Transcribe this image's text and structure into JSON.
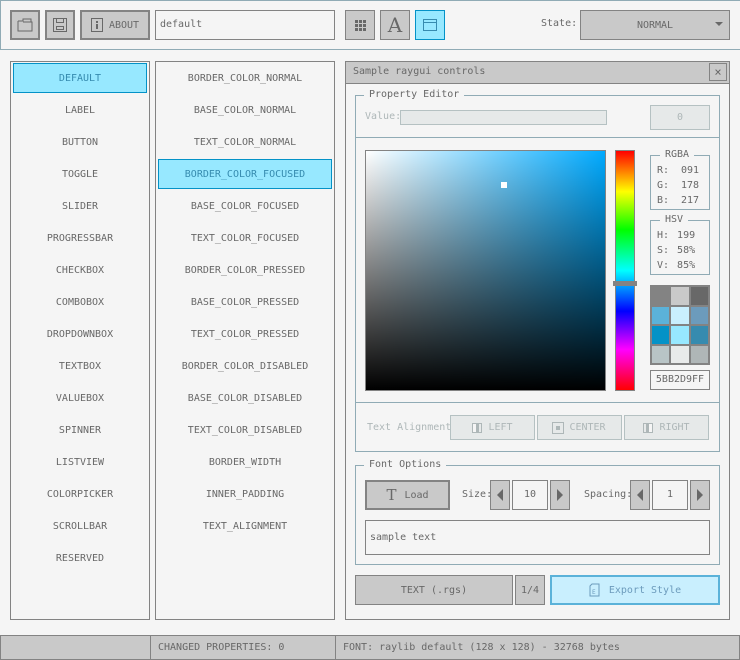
{
  "toolbar": {
    "about_label": "ABOUT",
    "style_name": "default",
    "state_label": "State:",
    "state_value": "NORMAL",
    "icons": [
      "folder-open-icon",
      "save-icon",
      "info-icon",
      "grid-icon",
      "font-icon",
      "window-icon"
    ]
  },
  "controls": {
    "items": [
      "DEFAULT",
      "LABEL",
      "BUTTON",
      "TOGGLE",
      "SLIDER",
      "PROGRESSBAR",
      "CHECKBOX",
      "COMBOBOX",
      "DROPDOWNBOX",
      "TEXTBOX",
      "VALUEBOX",
      "SPINNER",
      "LISTVIEW",
      "COLORPICKER",
      "SCROLLBAR",
      "RESERVED"
    ],
    "selected": 0
  },
  "properties": {
    "items": [
      "BORDER_COLOR_NORMAL",
      "BASE_COLOR_NORMAL",
      "TEXT_COLOR_NORMAL",
      "BORDER_COLOR_FOCUSED",
      "BASE_COLOR_FOCUSED",
      "TEXT_COLOR_FOCUSED",
      "BORDER_COLOR_PRESSED",
      "BASE_COLOR_PRESSED",
      "TEXT_COLOR_PRESSED",
      "BORDER_COLOR_DISABLED",
      "BASE_COLOR_DISABLED",
      "TEXT_COLOR_DISABLED",
      "BORDER_WIDTH",
      "INNER_PADDING",
      "TEXT_ALIGNMENT"
    ],
    "selected": 3
  },
  "window": {
    "title": "Sample raygui controls",
    "close": "×"
  },
  "property_editor": {
    "title": "Property Editor",
    "value_label": "Value:",
    "value_button": "0",
    "rgba": {
      "title": "RGBA",
      "r_label": "R:",
      "r": "091",
      "g_label": "G:",
      "g": "178",
      "b_label": "B:",
      "b": "217"
    },
    "hsv": {
      "title": "HSV",
      "h_label": "H:",
      "h": "199",
      "s_label": "S:",
      "s": "58%",
      "v_label": "V:",
      "v": "85%"
    },
    "hue_color": "#00aaff",
    "selected_color": "#5bb2d9",
    "palette": [
      "#838383",
      "#c9c9c9",
      "#686868",
      "#5bb2d9",
      "#c9effe",
      "#6c9bbc",
      "#0492c7",
      "#97e8ff",
      "#368baf",
      "#b8c4c6",
      "#e8eaea",
      "#afb6b7"
    ],
    "hex": "5BB2D9FF",
    "text_alignment_label": "Text Alignment:",
    "align_left": "LEFT",
    "align_center": "CENTER",
    "align_right": "RIGHT"
  },
  "font_options": {
    "title": "Font Options",
    "load": "Load",
    "size_label": "Size:",
    "size": "10",
    "spacing_label": "Spacing:",
    "spacing": "1",
    "sample_text": "sample text"
  },
  "footer_buttons": {
    "format": "TEXT (.rgs)",
    "page": "1/4",
    "export": "Export Style"
  },
  "status": {
    "changed": "CHANGED PROPERTIES: 0",
    "font": "FONT: raylib default (128 x 128) - 32768 bytes"
  }
}
